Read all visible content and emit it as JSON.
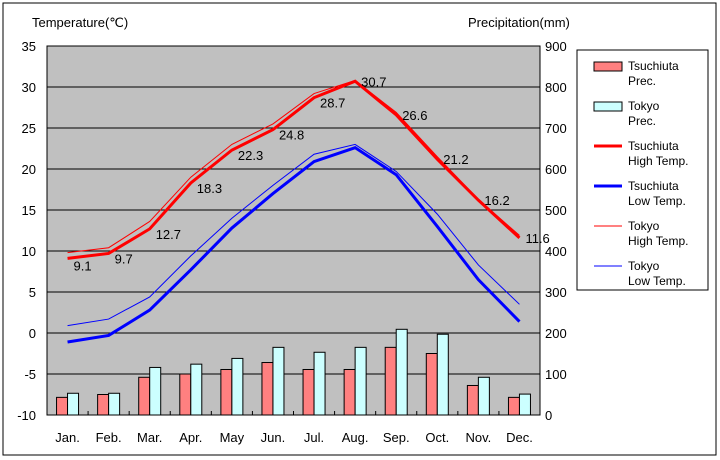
{
  "chart_data": {
    "type": "bar+line",
    "left_axis_label": "Temperature(℃)",
    "right_axis_label": "Precipitation(mm)",
    "categories": [
      "Jan.",
      "Feb.",
      "Mar.",
      "Apr.",
      "May",
      "Jun.",
      "Jul.",
      "Aug.",
      "Sep.",
      "Oct.",
      "Nov.",
      "Dec."
    ],
    "left_ylim": [
      -10,
      35
    ],
    "left_ticks": [
      -10,
      -5,
      0,
      5,
      10,
      15,
      20,
      25,
      30,
      35
    ],
    "right_ylim": [
      0,
      900
    ],
    "right_ticks": [
      0,
      100,
      200,
      300,
      400,
      500,
      600,
      700,
      800,
      900
    ],
    "grid": true,
    "legend_placement": "right",
    "bar_series": [
      {
        "name": "Tsuchiuta Prec.",
        "legend": [
          "Tsuchiuta",
          "Prec."
        ],
        "color": "#FF8080",
        "values": [
          43,
          50,
          92,
          100,
          111,
          128,
          111,
          111,
          165,
          150,
          72,
          43
        ]
      },
      {
        "name": "Tokyo Prec.",
        "legend": [
          "Tokyo",
          "Prec."
        ],
        "color": "#CCFFFF",
        "values": [
          53,
          53,
          116,
          124,
          138,
          165,
          153,
          165,
          209,
          197,
          92,
          51
        ]
      }
    ],
    "line_series": [
      {
        "name": "Tokyo High Temp.",
        "legend": [
          "Tokyo",
          "High Temp."
        ],
        "color": "#FF0000",
        "width": 1,
        "values": [
          9.8,
          10.4,
          13.6,
          19.0,
          23.0,
          25.5,
          29.2,
          30.8,
          26.9,
          21.5,
          16.3,
          11.9
        ]
      },
      {
        "name": "Tokyo Low Temp.",
        "legend": [
          "Tokyo",
          "Low Temp."
        ],
        "color": "#0000FF",
        "width": 1,
        "values": [
          0.9,
          1.7,
          4.4,
          9.4,
          14.0,
          18.0,
          21.8,
          23.0,
          19.7,
          14.5,
          8.3,
          3.5
        ]
      },
      {
        "name": "Tsuchiuta High Temp.",
        "legend": [
          "Tsuchiuta",
          "High Temp."
        ],
        "color": "#FF0000",
        "width": 3,
        "values": [
          9.1,
          9.7,
          12.7,
          18.3,
          22.3,
          24.8,
          28.7,
          30.7,
          26.6,
          21.2,
          16.2,
          11.6
        ],
        "labels": [
          "9.1",
          "9.7",
          "12.7",
          "18.3",
          "22.3",
          "24.8",
          "28.7",
          "30.7",
          "26.6",
          "21.2",
          "16.2",
          "11.6"
        ]
      },
      {
        "name": "Tsuchiuta Low Temp.",
        "legend": [
          "Tsuchiuta",
          "Low Temp."
        ],
        "color": "#0000FF",
        "width": 3,
        "values": [
          -1.1,
          -0.3,
          2.8,
          7.7,
          12.8,
          17.0,
          20.9,
          22.6,
          19.3,
          13.0,
          6.5,
          1.4
        ]
      }
    ],
    "legend_order": [
      "Tsuchiuta Prec.",
      "Tokyo Prec.",
      "Tsuchiuta High Temp.",
      "Tsuchiuta Low Temp.",
      "Tokyo High Temp.",
      "Tokyo Low Temp."
    ]
  }
}
